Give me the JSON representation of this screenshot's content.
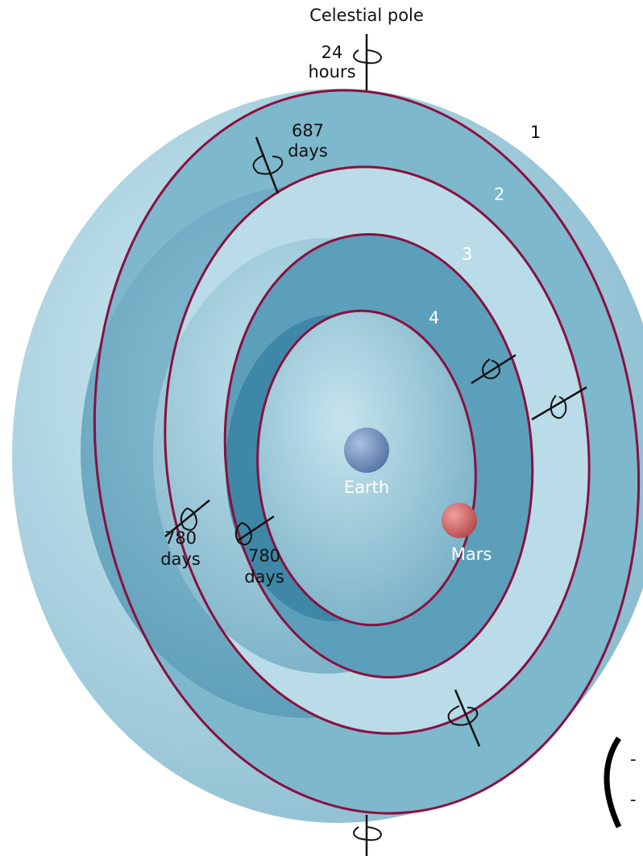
{
  "title": "Celestial pole",
  "pole_period": {
    "number": "24",
    "unit": "hours"
  },
  "sphere_labels": [
    "1",
    "2",
    "3",
    "4"
  ],
  "periods": [
    {
      "number": "687",
      "unit": "days"
    },
    {
      "number": "780",
      "unit": "days"
    },
    {
      "number": "780",
      "unit": "days"
    }
  ],
  "bodies": [
    "Earth",
    "Mars"
  ],
  "cropped_fragments": [
    "-",
    "-"
  ]
}
